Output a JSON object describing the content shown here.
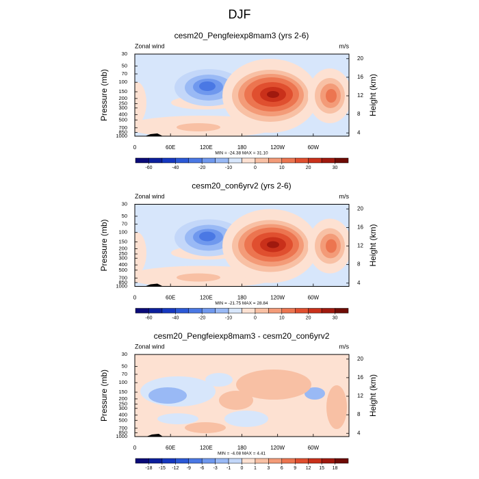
{
  "title": "DJF",
  "chart_data": [
    {
      "type": "contour",
      "title": "cesm20_Pengfeiexp8mam3 (yrs 2-6)",
      "left_label": "Zonal wind",
      "right_label": "m/s",
      "ylabel": "Pressure (mb)",
      "y2label": "Height (km)",
      "min_max": "MIN = -24.38  MAX = 31.10",
      "xlim": [
        0,
        360
      ],
      "xticks": [
        0,
        {
          "value": 60,
          "label": "60E"
        },
        {
          "value": 120,
          "label": "120E"
        },
        180,
        {
          "value": 240,
          "label": "120W"
        },
        {
          "value": 300,
          "label": "60W"
        }
      ],
      "ylim": [
        1000,
        30
      ],
      "log_y": true,
      "yticks": [
        30,
        50,
        70,
        100,
        150,
        200,
        250,
        300,
        400,
        500,
        700,
        850,
        1000
      ],
      "y2lim": [
        3.3,
        21
      ],
      "y2ticks": [
        4,
        8,
        12,
        16,
        20
      ],
      "colorbar": {
        "colors": [
          "#0a0a78",
          "#0c1f9c",
          "#1638c0",
          "#2b58d6",
          "#4a78e4",
          "#6f98ee",
          "#99b9f5",
          "#d7e6fb",
          "#fde1d2",
          "#f8c0a4",
          "#f39b78",
          "#ec7550",
          "#e04f2f",
          "#c9301a",
          "#a0190e",
          "#6e0b05"
        ],
        "label_every": 2,
        "levels": [
          -60,
          -40,
          -20,
          -10,
          0,
          10,
          20,
          30
        ]
      }
    },
    {
      "type": "contour",
      "title": "cesm20_con6yrv2 (yrs 2-6)",
      "left_label": "Zonal wind",
      "right_label": "m/s",
      "ylabel": "Pressure (mb)",
      "y2label": "Height (km)",
      "min_max": "MIN = -21.75  MAX = 28.84",
      "xlim": [
        0,
        360
      ],
      "xticks": [
        0,
        {
          "value": 60,
          "label": "60E"
        },
        {
          "value": 120,
          "label": "120E"
        },
        180,
        {
          "value": 240,
          "label": "120W"
        },
        {
          "value": 300,
          "label": "60W"
        }
      ],
      "ylim": [
        1000,
        30
      ],
      "log_y": true,
      "yticks": [
        30,
        50,
        70,
        100,
        150,
        200,
        250,
        300,
        400,
        500,
        700,
        850,
        1000
      ],
      "y2lim": [
        3.3,
        21
      ],
      "y2ticks": [
        4,
        8,
        12,
        16,
        20
      ],
      "colorbar": {
        "colors": [
          "#0a0a78",
          "#0c1f9c",
          "#1638c0",
          "#2b58d6",
          "#4a78e4",
          "#6f98ee",
          "#99b9f5",
          "#d7e6fb",
          "#fde1d2",
          "#f8c0a4",
          "#f39b78",
          "#ec7550",
          "#e04f2f",
          "#c9301a",
          "#a0190e",
          "#6e0b05"
        ],
        "label_every": 2,
        "levels": [
          -60,
          -40,
          -20,
          -10,
          0,
          10,
          20,
          30
        ]
      }
    },
    {
      "type": "contour",
      "title": "cesm20_Pengfeiexp8mam3 - cesm20_con6yrv2",
      "left_label": "Zonal wind",
      "right_label": "m/s",
      "ylabel": "Pressure (mb)",
      "y2label": "Height (km)",
      "min_max": "MIN = -4.08  MAX =  4.41",
      "xlim": [
        0,
        360
      ],
      "xticks": [
        0,
        {
          "value": 60,
          "label": "60E"
        },
        {
          "value": 120,
          "label": "120E"
        },
        180,
        {
          "value": 240,
          "label": "120W"
        },
        {
          "value": 300,
          "label": "60W"
        }
      ],
      "ylim": [
        1000,
        30
      ],
      "log_y": true,
      "yticks": [
        30,
        50,
        70,
        100,
        150,
        200,
        250,
        300,
        400,
        500,
        700,
        850,
        1000
      ],
      "y2lim": [
        3.3,
        21
      ],
      "y2ticks": [
        4,
        8,
        12,
        16,
        20
      ],
      "colorbar": {
        "colors": [
          "#0a0a78",
          "#0c1f9c",
          "#1638c0",
          "#2b58d6",
          "#4a78e4",
          "#6f98ee",
          "#99b9f5",
          "#c3d7f9",
          "#fde1d2",
          "#f8c0a4",
          "#f39b78",
          "#ec7550",
          "#e04f2f",
          "#c9301a",
          "#a0190e",
          "#6e0b05"
        ],
        "label_every": 1,
        "levels": [
          -18,
          -15,
          -12,
          -9,
          -6,
          -3,
          -1,
          0,
          1,
          3,
          6,
          9,
          12,
          15,
          18
        ]
      }
    }
  ]
}
